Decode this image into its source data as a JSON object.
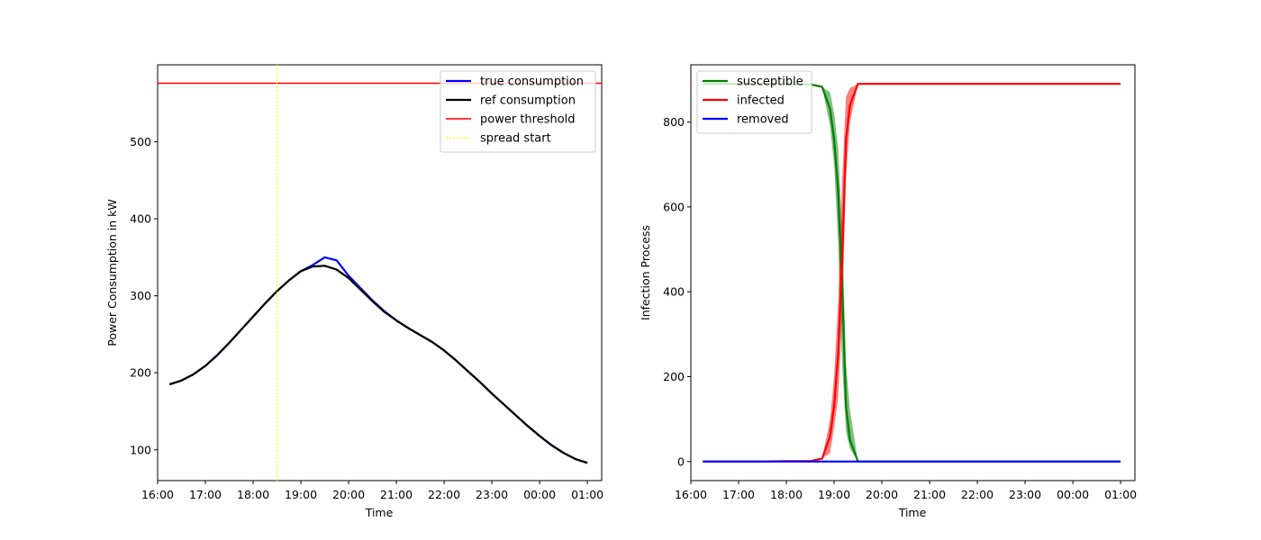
{
  "chart_data": [
    {
      "type": "line",
      "xlabel": "Time",
      "ylabel": "Power Consumption in kW",
      "x_ticks": [
        "16:00",
        "17:00",
        "18:00",
        "19:00",
        "20:00",
        "21:00",
        "22:00",
        "23:00",
        "00:00",
        "01:00"
      ],
      "y_ticks": [
        100,
        200,
        300,
        400,
        500
      ],
      "xlim": [
        "16:00",
        "01:18"
      ],
      "ylim": [
        60,
        600
      ],
      "legend_position": "top-right",
      "x": [
        "16:15",
        "16:30",
        "16:45",
        "17:00",
        "17:15",
        "17:30",
        "17:45",
        "18:00",
        "18:15",
        "18:30",
        "18:45",
        "19:00",
        "19:15",
        "19:30",
        "19:45",
        "20:00",
        "20:15",
        "20:30",
        "20:45",
        "21:00",
        "21:15",
        "21:30",
        "21:45",
        "22:00",
        "22:15",
        "22:30",
        "22:45",
        "23:00",
        "23:15",
        "23:30",
        "23:45",
        "00:00",
        "00:15",
        "00:30",
        "00:45",
        "01:00"
      ],
      "series": [
        {
          "name": "true consumption",
          "color": "#0000ff",
          "style": "solid",
          "values": [
            185,
            190,
            198,
            209,
            223,
            239,
            256,
            273,
            290,
            306,
            320,
            332,
            340,
            350,
            346,
            326,
            310,
            294,
            280,
            268,
            258,
            249,
            240,
            229,
            216,
            202,
            188,
            173,
            159,
            145,
            131,
            118,
            106,
            96,
            88,
            83
          ]
        },
        {
          "name": "ref consumption",
          "color": "#000000",
          "style": "solid",
          "values": [
            185,
            190,
            198,
            209,
            223,
            239,
            256,
            273,
            290,
            306,
            320,
            332,
            338,
            339,
            334,
            323,
            308,
            293,
            279,
            268,
            258,
            249,
            240,
            229,
            216,
            202,
            188,
            173,
            159,
            145,
            131,
            118,
            106,
            96,
            88,
            83
          ]
        },
        {
          "name": "power threshold",
          "color": "#ff0000",
          "style": "hline",
          "value": 576
        },
        {
          "name": "spread start",
          "color": "#ffff00",
          "style": "vline-dotted",
          "x_value": "18:30"
        }
      ]
    },
    {
      "type": "area",
      "xlabel": "Time",
      "ylabel": "Infection Process",
      "x_ticks": [
        "16:00",
        "17:00",
        "18:00",
        "19:00",
        "20:00",
        "21:00",
        "22:00",
        "23:00",
        "00:00",
        "01:00"
      ],
      "y_ticks": [
        0,
        200,
        400,
        600,
        800
      ],
      "xlim": [
        "16:00",
        "01:18"
      ],
      "ylim": [
        -45,
        935
      ],
      "legend_position": "top-left",
      "x": [
        "16:15",
        "17:00",
        "17:30",
        "18:00",
        "18:30",
        "18:45",
        "18:55",
        "19:00",
        "19:05",
        "19:10",
        "19:15",
        "19:20",
        "19:30",
        "19:45",
        "20:00",
        "21:00",
        "22:00",
        "23:00",
        "00:00",
        "01:00"
      ],
      "series": [
        {
          "name": "susceptible",
          "color": "#008000",
          "values": [
            890,
            890,
            890,
            889,
            889,
            883,
            830,
            760,
            640,
            420,
            130,
            50,
            0,
            0,
            0,
            0,
            0,
            0,
            0,
            0
          ],
          "band_low": [
            890,
            890,
            890,
            889,
            889,
            883,
            790,
            700,
            520,
            230,
            70,
            30,
            0,
            0,
            0,
            0,
            0,
            0,
            0,
            0
          ],
          "band_high": [
            890,
            890,
            890,
            889,
            889,
            883,
            870,
            820,
            740,
            560,
            230,
            120,
            0,
            0,
            0,
            0,
            0,
            0,
            0,
            0
          ]
        },
        {
          "name": "infected",
          "color": "#ff0000",
          "values": [
            0,
            0,
            0,
            1,
            1,
            7,
            60,
            130,
            250,
            470,
            760,
            840,
            890,
            890,
            890,
            890,
            890,
            890,
            890,
            890
          ],
          "band_low": [
            0,
            0,
            0,
            1,
            1,
            7,
            20,
            80,
            150,
            330,
            670,
            800,
            890,
            890,
            890,
            890,
            890,
            890,
            890,
            890
          ],
          "band_high": [
            0,
            0,
            0,
            1,
            1,
            7,
            100,
            200,
            370,
            660,
            860,
            880,
            890,
            890,
            890,
            890,
            890,
            890,
            890,
            890
          ]
        },
        {
          "name": "removed",
          "color": "#0000ff",
          "values": [
            0,
            0,
            0,
            0,
            0,
            0,
            0,
            0,
            0,
            0,
            0,
            0,
            0,
            0,
            0,
            0,
            0,
            0,
            0,
            0
          ]
        }
      ]
    }
  ]
}
